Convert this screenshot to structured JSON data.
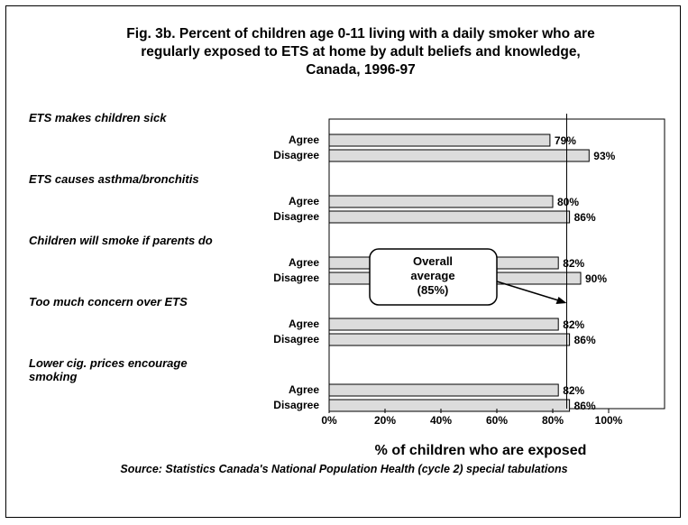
{
  "chart_data": {
    "type": "bar",
    "orientation": "horizontal",
    "title_lines": [
      "Fig. 3b. Percent of children age 0-11 living with a daily smoker who are",
      "regularly exposed to ETS at home by adult beliefs and knowledge,",
      "Canada, 1996-97"
    ],
    "groups": [
      {
        "label": [
          "ETS makes children sick"
        ],
        "bars": [
          {
            "category": "Agree",
            "value": 79,
            "label": "79%"
          },
          {
            "category": "Disagree",
            "value": 93,
            "label": "93%"
          }
        ]
      },
      {
        "label": [
          "ETS causes asthma/bronchitis"
        ],
        "bars": [
          {
            "category": "Agree",
            "value": 80,
            "label": "80%"
          },
          {
            "category": "Disagree",
            "value": 86,
            "label": "86%"
          }
        ]
      },
      {
        "label": [
          "Children will smoke if parents do"
        ],
        "bars": [
          {
            "category": "Agree",
            "value": 82,
            "label": "82%"
          },
          {
            "category": "Disagree",
            "value": 90,
            "label": "90%"
          }
        ]
      },
      {
        "label": [
          "Too much concern over ETS"
        ],
        "bars": [
          {
            "category": "Agree",
            "value": 82,
            "label": "82%"
          },
          {
            "category": "Disagree",
            "value": 86,
            "label": "86%"
          }
        ]
      },
      {
        "label": [
          "Lower cig. prices encourage",
          "smoking"
        ],
        "bars": [
          {
            "category": "Agree",
            "value": 82,
            "label": "82%"
          },
          {
            "category": "Disagree",
            "value": 86,
            "label": "86%"
          }
        ]
      }
    ],
    "reference_line": {
      "value": 85,
      "label_lines": [
        "Overall",
        "average",
        "(85%)"
      ]
    },
    "xlim": [
      0,
      120
    ],
    "xticks": [
      0,
      20,
      40,
      60,
      80,
      100
    ],
    "xtick_labels": [
      "0%",
      "20%",
      "40%",
      "60%",
      "80%",
      "100%"
    ],
    "xlabel": "% of children who are exposed",
    "source": "Source: Statistics Canada's National Population Health (cycle 2) special tabulations",
    "bar_color": "#dcdcdc",
    "bar_stroke": "#000000",
    "grid": false
  }
}
